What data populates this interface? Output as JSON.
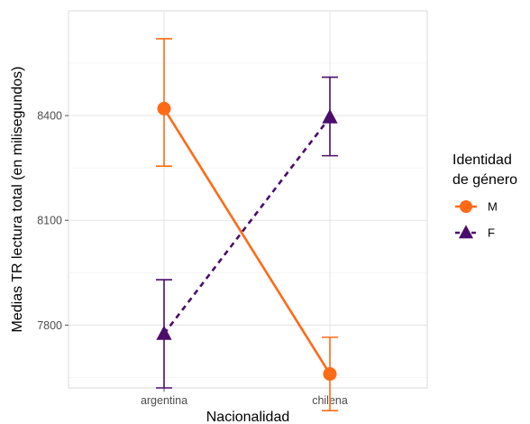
{
  "chart_data": {
    "type": "line",
    "title": "",
    "xlabel": "Nacionalidad",
    "ylabel": "Medias TR lectura total (en milisegundos)",
    "categories": [
      "argentina",
      "chilena"
    ],
    "ylim": [
      7620,
      8700
    ],
    "yticks": [
      7800,
      8100,
      8400
    ],
    "ytick_labels": [
      "7800",
      "8100",
      "8400"
    ],
    "grid": true,
    "legend": {
      "title_lines": [
        "Identidad",
        "de género"
      ],
      "position": "right"
    },
    "series": [
      {
        "name": "M",
        "color": "#FF6A17",
        "marker": "circle",
        "linestyle": "solid",
        "values": [
          8420,
          7660
        ],
        "error_low": [
          8255,
          7555
        ],
        "error_high": [
          8620,
          7765
        ]
      },
      {
        "name": "F",
        "color": "#4B0C6B",
        "marker": "triangle",
        "linestyle": "dashed",
        "values": [
          7775,
          8395
        ],
        "error_low": [
          7620,
          8285
        ],
        "error_high": [
          7930,
          8510
        ]
      }
    ]
  }
}
